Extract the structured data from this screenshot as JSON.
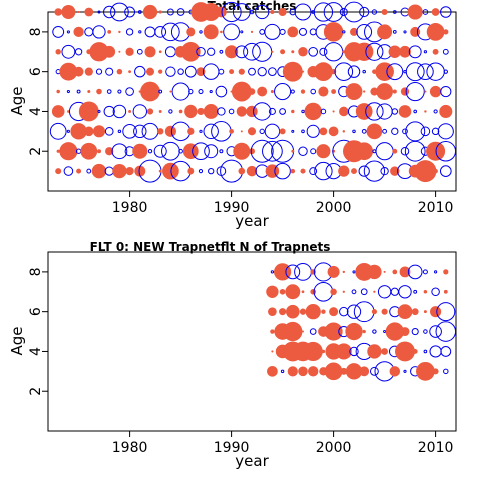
{
  "colors": {
    "positive": "#ec5b40",
    "negative": "#0000ee",
    "axis": "#000000"
  },
  "chart_data": [
    {
      "type": "bubble",
      "title": "Total catches",
      "xlabel": "year",
      "ylabel": "Age",
      "xlim": [
        1972,
        2012
      ],
      "ylim": [
        0,
        9
      ],
      "xticks": [
        1980,
        1990,
        2000,
        2010
      ],
      "yticks": [
        2,
        4,
        6,
        8
      ],
      "x_years": [
        1973,
        2011
      ],
      "ages": [
        1,
        9
      ],
      "note": "Residual bubbles: filled = positive, open = negative; size ~ |residual|",
      "grid": false
    },
    {
      "type": "bubble",
      "title": "FLT 0: NEW Trapnetflt    N of Trapnets",
      "xlabel": "year",
      "ylabel": "Age",
      "xlim": [
        1972,
        2012
      ],
      "ylim": [
        0,
        9
      ],
      "xticks": [
        1980,
        1990,
        2000,
        2010
      ],
      "yticks": [
        2,
        4,
        6,
        8
      ],
      "x_years": [
        1994,
        2011
      ],
      "ages": [
        3,
        8
      ],
      "note": "Residual bubbles: filled = positive, open = negative; size ~ |residual|",
      "grid": false
    }
  ]
}
